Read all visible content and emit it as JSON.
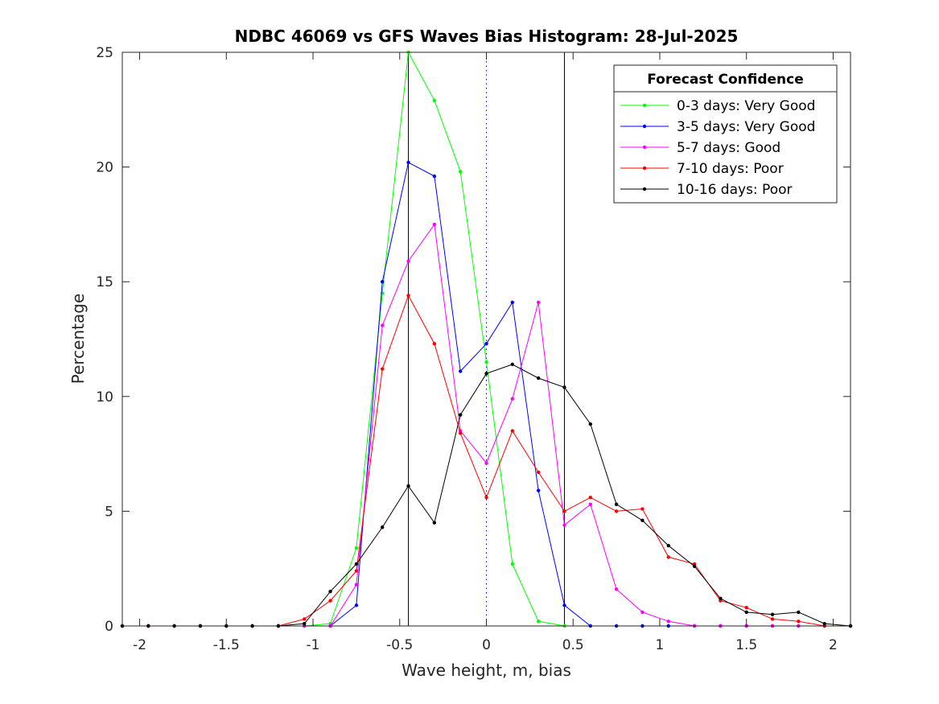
{
  "chart_data": {
    "type": "line",
    "title": "NDBC 46069 vs GFS Waves Bias Histogram: 28-Jul-2025",
    "xlabel": "Wave height, m, bias",
    "ylabel": "Percentage",
    "xlim": [
      -2.1,
      2.1
    ],
    "ylim": [
      0,
      25
    ],
    "xticks": [
      -2,
      -1.5,
      -1,
      -0.5,
      0,
      0.5,
      1,
      1.5,
      2
    ],
    "xtick_labels": [
      "-2",
      "-1.5",
      "-1",
      "-0.5",
      "0",
      "0.5",
      "1",
      "1.5",
      "2"
    ],
    "yticks": [
      0,
      5,
      10,
      15,
      20,
      25
    ],
    "ytick_labels": [
      "0",
      "5",
      "10",
      "15",
      "20",
      "25"
    ],
    "grid": false,
    "reference_lines": [
      {
        "x": -0.45,
        "style": "solid"
      },
      {
        "x": 0,
        "style": "dotted"
      },
      {
        "x": 0.45,
        "style": "solid"
      }
    ],
    "legend": {
      "title": "Forecast Confidence",
      "placement": "top-right"
    },
    "x": [
      -2.1,
      -1.95,
      -1.8,
      -1.65,
      -1.5,
      -1.35,
      -1.2,
      -1.05,
      -0.9,
      -0.75,
      -0.6,
      -0.45,
      -0.3,
      -0.15,
      0,
      0.15,
      0.3,
      0.45,
      0.6,
      0.75,
      0.9,
      1.05,
      1.2,
      1.35,
      1.5,
      1.65,
      1.8,
      1.95,
      2.1
    ],
    "series": [
      {
        "name": "0-3 days: Very Good",
        "color": "#00ff00",
        "values": [
          0,
          0,
          0,
          0,
          0,
          0,
          0,
          0,
          0.1,
          3.4,
          14.5,
          25.0,
          22.9,
          19.8,
          11.5,
          2.7,
          0.2,
          0,
          0,
          0,
          0,
          0,
          0,
          0,
          0,
          0,
          0,
          0,
          0
        ]
      },
      {
        "name": "3-5 days: Very Good",
        "color": "#0000ff",
        "values": [
          0,
          0,
          0,
          0,
          0,
          0,
          0,
          0,
          0,
          0.9,
          15.0,
          20.2,
          19.6,
          11.1,
          12.3,
          14.1,
          5.9,
          0.9,
          0,
          0,
          0,
          0,
          0,
          0,
          0,
          0,
          0,
          0,
          0
        ]
      },
      {
        "name": "5-7 days: Good",
        "color": "#ff00ff",
        "values": [
          0,
          0,
          0,
          0,
          0,
          0,
          0,
          0,
          0,
          1.8,
          13.1,
          15.9,
          17.5,
          8.5,
          7.1,
          9.9,
          14.1,
          4.4,
          5.3,
          1.6,
          0.6,
          0.2,
          0,
          0,
          0,
          0,
          0,
          0,
          0
        ]
      },
      {
        "name": "7-10 days: Poor",
        "color": "#ff0000",
        "values": [
          0,
          0,
          0,
          0,
          0,
          0,
          0,
          0.3,
          1.1,
          2.4,
          11.2,
          14.4,
          12.3,
          8.4,
          5.6,
          8.5,
          6.7,
          5.0,
          5.6,
          5.0,
          5.1,
          3.0,
          2.7,
          1.1,
          0.8,
          0.3,
          0.2,
          0,
          0
        ]
      },
      {
        "name": "10-16 days: Poor",
        "color": "#000000",
        "values": [
          0,
          0,
          0,
          0,
          0,
          0,
          0,
          0.1,
          1.5,
          2.7,
          4.3,
          6.1,
          4.5,
          9.2,
          11.0,
          11.4,
          10.8,
          10.4,
          8.8,
          5.3,
          4.6,
          3.5,
          2.6,
          1.2,
          0.6,
          0.5,
          0.6,
          0.1,
          0
        ]
      }
    ]
  }
}
